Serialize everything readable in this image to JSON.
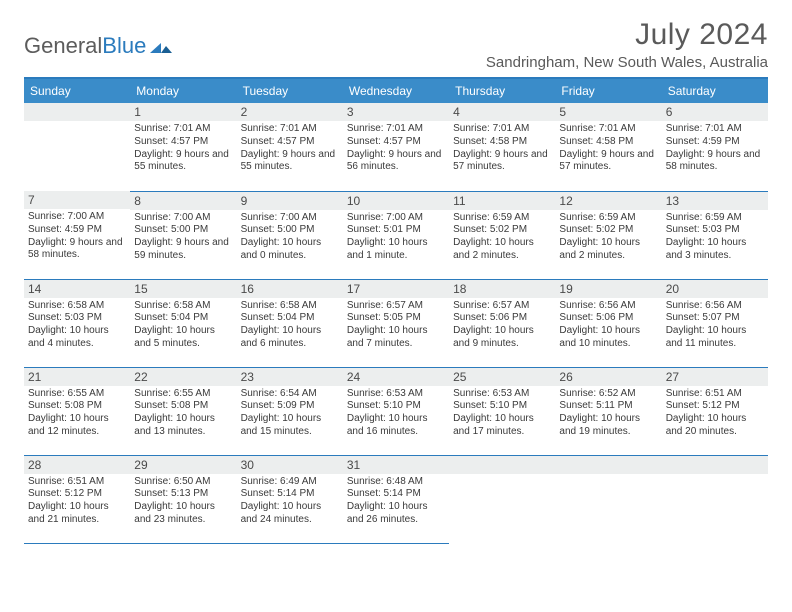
{
  "brand": {
    "part1": "General",
    "part2": "Blue"
  },
  "title": "July 2024",
  "location": "Sandringham, New South Wales, Australia",
  "colors": {
    "accent": "#3a8cc9",
    "rule": "#2b7bbd",
    "daynum_bg": "#eceeee",
    "text": "#3a3a3a",
    "header_text": "#5a5a5a"
  },
  "weekdays": [
    "Sunday",
    "Monday",
    "Tuesday",
    "Wednesday",
    "Thursday",
    "Friday",
    "Saturday"
  ],
  "weeks": [
    [
      null,
      {
        "n": "1",
        "sr": "7:01 AM",
        "ss": "4:57 PM",
        "dl": "9 hours and 55 minutes."
      },
      {
        "n": "2",
        "sr": "7:01 AM",
        "ss": "4:57 PM",
        "dl": "9 hours and 55 minutes."
      },
      {
        "n": "3",
        "sr": "7:01 AM",
        "ss": "4:57 PM",
        "dl": "9 hours and 56 minutes."
      },
      {
        "n": "4",
        "sr": "7:01 AM",
        "ss": "4:58 PM",
        "dl": "9 hours and 57 minutes."
      },
      {
        "n": "5",
        "sr": "7:01 AM",
        "ss": "4:58 PM",
        "dl": "9 hours and 57 minutes."
      },
      {
        "n": "6",
        "sr": "7:01 AM",
        "ss": "4:59 PM",
        "dl": "9 hours and 58 minutes."
      }
    ],
    [
      {
        "n": "7",
        "sr": "7:00 AM",
        "ss": "4:59 PM",
        "dl": "9 hours and 58 minutes."
      },
      {
        "n": "8",
        "sr": "7:00 AM",
        "ss": "5:00 PM",
        "dl": "9 hours and 59 minutes."
      },
      {
        "n": "9",
        "sr": "7:00 AM",
        "ss": "5:00 PM",
        "dl": "10 hours and 0 minutes."
      },
      {
        "n": "10",
        "sr": "7:00 AM",
        "ss": "5:01 PM",
        "dl": "10 hours and 1 minute."
      },
      {
        "n": "11",
        "sr": "6:59 AM",
        "ss": "5:02 PM",
        "dl": "10 hours and 2 minutes."
      },
      {
        "n": "12",
        "sr": "6:59 AM",
        "ss": "5:02 PM",
        "dl": "10 hours and 2 minutes."
      },
      {
        "n": "13",
        "sr": "6:59 AM",
        "ss": "5:03 PM",
        "dl": "10 hours and 3 minutes."
      }
    ],
    [
      {
        "n": "14",
        "sr": "6:58 AM",
        "ss": "5:03 PM",
        "dl": "10 hours and 4 minutes."
      },
      {
        "n": "15",
        "sr": "6:58 AM",
        "ss": "5:04 PM",
        "dl": "10 hours and 5 minutes."
      },
      {
        "n": "16",
        "sr": "6:58 AM",
        "ss": "5:04 PM",
        "dl": "10 hours and 6 minutes."
      },
      {
        "n": "17",
        "sr": "6:57 AM",
        "ss": "5:05 PM",
        "dl": "10 hours and 7 minutes."
      },
      {
        "n": "18",
        "sr": "6:57 AM",
        "ss": "5:06 PM",
        "dl": "10 hours and 9 minutes."
      },
      {
        "n": "19",
        "sr": "6:56 AM",
        "ss": "5:06 PM",
        "dl": "10 hours and 10 minutes."
      },
      {
        "n": "20",
        "sr": "6:56 AM",
        "ss": "5:07 PM",
        "dl": "10 hours and 11 minutes."
      }
    ],
    [
      {
        "n": "21",
        "sr": "6:55 AM",
        "ss": "5:08 PM",
        "dl": "10 hours and 12 minutes."
      },
      {
        "n": "22",
        "sr": "6:55 AM",
        "ss": "5:08 PM",
        "dl": "10 hours and 13 minutes."
      },
      {
        "n": "23",
        "sr": "6:54 AM",
        "ss": "5:09 PM",
        "dl": "10 hours and 15 minutes."
      },
      {
        "n": "24",
        "sr": "6:53 AM",
        "ss": "5:10 PM",
        "dl": "10 hours and 16 minutes."
      },
      {
        "n": "25",
        "sr": "6:53 AM",
        "ss": "5:10 PM",
        "dl": "10 hours and 17 minutes."
      },
      {
        "n": "26",
        "sr": "6:52 AM",
        "ss": "5:11 PM",
        "dl": "10 hours and 19 minutes."
      },
      {
        "n": "27",
        "sr": "6:51 AM",
        "ss": "5:12 PM",
        "dl": "10 hours and 20 minutes."
      }
    ],
    [
      {
        "n": "28",
        "sr": "6:51 AM",
        "ss": "5:12 PM",
        "dl": "10 hours and 21 minutes."
      },
      {
        "n": "29",
        "sr": "6:50 AM",
        "ss": "5:13 PM",
        "dl": "10 hours and 23 minutes."
      },
      {
        "n": "30",
        "sr": "6:49 AM",
        "ss": "5:14 PM",
        "dl": "10 hours and 24 minutes."
      },
      {
        "n": "31",
        "sr": "6:48 AM",
        "ss": "5:14 PM",
        "dl": "10 hours and 26 minutes."
      },
      null,
      null,
      null
    ]
  ],
  "labels": {
    "sunrise": "Sunrise:",
    "sunset": "Sunset:",
    "daylight": "Daylight:"
  }
}
